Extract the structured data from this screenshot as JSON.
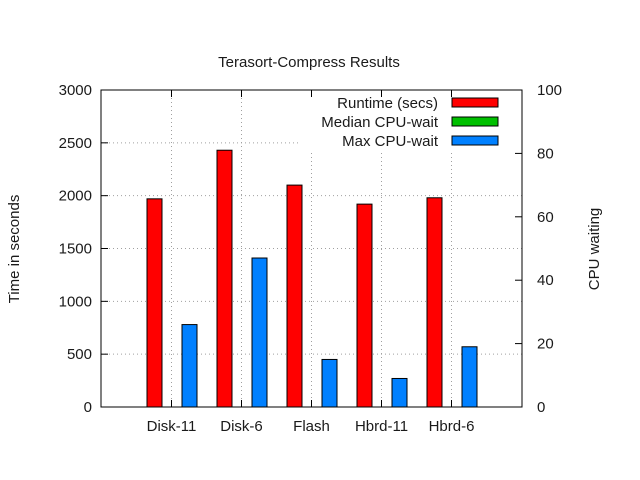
{
  "chart_data": {
    "type": "bar",
    "title": "Terasort-Compress Results",
    "ylabel": "Time in seconds",
    "y2label": "CPU waiting",
    "categories": [
      "Disk-11",
      "Disk-6",
      "Flash",
      "Hbrd-11",
      "Hbrd-6"
    ],
    "ylim": [
      0,
      3000
    ],
    "y2lim": [
      0,
      100
    ],
    "yticks": [
      0,
      500,
      1000,
      1500,
      2000,
      2500,
      3000
    ],
    "y2ticks": [
      0,
      20,
      40,
      60,
      80,
      100
    ],
    "grid": true,
    "legend_position": "top-right",
    "series": [
      {
        "name": "Runtime (secs)",
        "axis": "left",
        "color": "#ff0000",
        "values": [
          1970,
          2430,
          2100,
          1920,
          1980
        ]
      },
      {
        "name": "Median CPU-wait",
        "axis": "right",
        "color": "#00c000",
        "values": [
          0,
          0,
          0,
          0,
          0
        ]
      },
      {
        "name": "Max CPU-wait",
        "axis": "right",
        "color": "#0080ff",
        "values": [
          26,
          47,
          15,
          9,
          19
        ]
      }
    ]
  }
}
